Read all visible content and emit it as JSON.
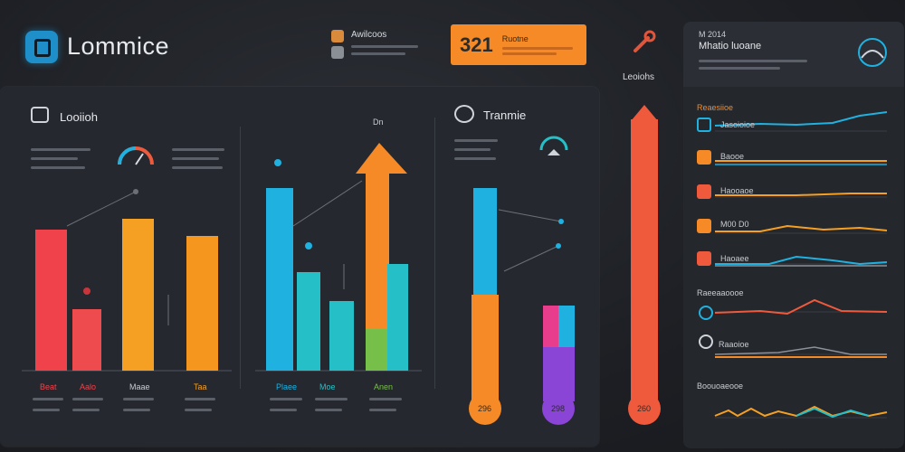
{
  "header": {
    "app_name": "Lommice",
    "notif_label": "Awilcoos",
    "orange_card": {
      "value": "321",
      "label": "Ruotne"
    },
    "legend_label": "Leoiohs",
    "right_title_1": "M 2014",
    "right_title_2": "Mhatio luoane"
  },
  "left_section": {
    "title": "Looiioh",
    "title_right": "Tranmie",
    "icon_top": "Dn"
  },
  "bars_group_1": {
    "categories": [
      "Beat",
      "Aalo",
      "Maae",
      "Taa"
    ],
    "colors": [
      "#f0424b",
      "#ee4b4f",
      "#f5a023",
      "#f5961f"
    ]
  },
  "bars_group_2": {
    "categories": [
      "Plaee",
      "Moe",
      "Anen"
    ]
  },
  "colors": {
    "accent_orange": "#f58a26",
    "accent_blue": "#1fb1e0",
    "accent_red": "#ef5a3c",
    "accent_teal": "#25c0c7",
    "accent_purple": "#8a44d6",
    "accent_green": "#76c04a"
  },
  "thermo_labels": [
    "296",
    "298",
    "260"
  ],
  "right_rows": {
    "section_1": "Reaesiioe",
    "row_labels": [
      "Jasoioioe",
      "Baooe",
      "Haooaoe",
      "M00 D0",
      "Haoaee"
    ],
    "section_2": "Raeeaaoooe",
    "row_labels_2": [
      "",
      "Raaoioe"
    ],
    "section_3": "Boouoaeooe"
  }
}
